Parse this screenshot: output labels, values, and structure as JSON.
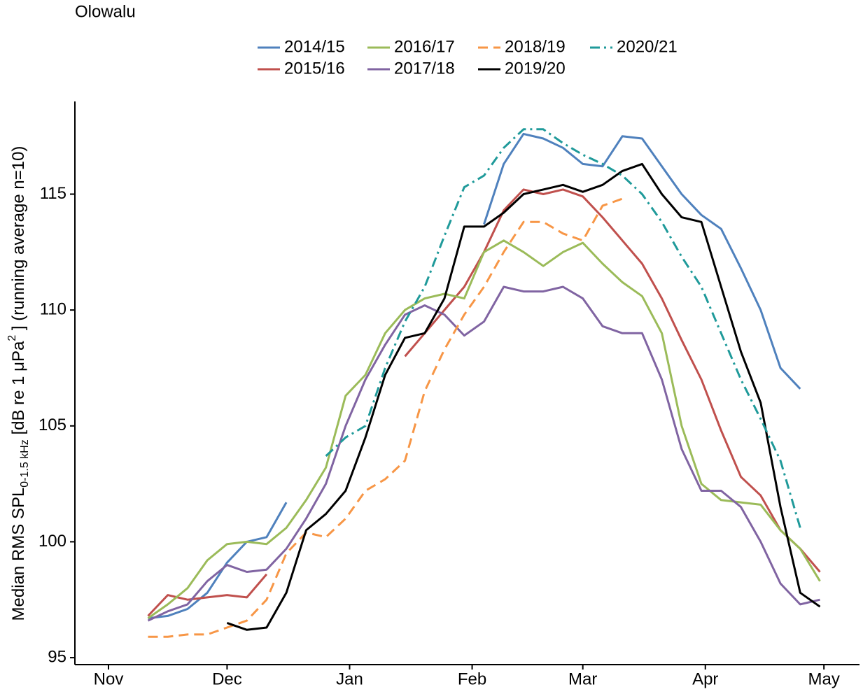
{
  "chart_data": {
    "type": "line",
    "title": "Olowalu",
    "ylabel": [
      "Median RMS SPL",
      "0-1.5 kHz",
      " [dB re 1 μPa",
      "2",
      " ] (running average n=10)"
    ],
    "x": [
      10,
      15,
      20,
      25,
      30,
      35,
      40,
      45,
      50,
      55,
      60,
      65,
      70,
      75,
      80,
      85,
      90,
      95,
      100,
      105,
      110,
      115,
      120,
      125,
      130,
      135,
      140,
      145,
      150,
      155,
      160,
      165,
      170,
      175,
      180
    ],
    "xlim": [
      -8.5,
      190
    ],
    "xticks": [
      {
        "value": 0,
        "label": "Nov"
      },
      {
        "value": 30,
        "label": "Dec"
      },
      {
        "value": 61,
        "label": "Jan"
      },
      {
        "value": 92,
        "label": "Feb"
      },
      {
        "value": 120,
        "label": "Mar"
      },
      {
        "value": 151,
        "label": "Apr"
      },
      {
        "value": 181,
        "label": "May"
      }
    ],
    "ylim": [
      94.7,
      119
    ],
    "yticks": [
      95,
      100,
      105,
      110,
      115
    ],
    "series": [
      {
        "name": "2014/15",
        "color": "#4f81bd",
        "dash": "solid",
        "values": [
          96.7,
          96.8,
          97.1,
          97.8,
          99.1,
          100.0,
          100.2,
          101.7,
          null,
          null,
          null,
          null,
          null,
          null,
          null,
          null,
          null,
          113.7,
          116.3,
          117.6,
          117.4,
          117.0,
          116.3,
          116.2,
          117.5,
          117.4,
          116.2,
          115.0,
          114.1,
          113.5,
          111.8,
          110.0,
          107.5,
          106.6,
          null
        ]
      },
      {
        "name": "2015/16",
        "color": "#c0504d",
        "dash": "solid",
        "values": [
          96.8,
          97.7,
          97.5,
          97.6,
          97.7,
          97.6,
          98.6,
          null,
          null,
          null,
          null,
          null,
          null,
          108.0,
          109.0,
          110.0,
          111.0,
          112.5,
          114.3,
          115.2,
          115.0,
          115.2,
          114.9,
          114.0,
          113.0,
          112.0,
          110.5,
          108.7,
          107.0,
          104.8,
          102.8,
          102.0,
          100.5,
          99.7,
          98.7
        ]
      },
      {
        "name": "2016/17",
        "color": "#9bbb59",
        "dash": "solid",
        "values": [
          96.7,
          97.3,
          98.0,
          99.2,
          99.9,
          100.0,
          99.9,
          100.6,
          101.8,
          103.2,
          106.3,
          107.2,
          109.0,
          110.0,
          110.5,
          110.7,
          110.5,
          112.5,
          113.0,
          112.5,
          111.9,
          112.5,
          112.9,
          112.0,
          111.2,
          110.6,
          109.0,
          105.0,
          102.5,
          101.8,
          101.7,
          101.6,
          100.5,
          99.7,
          98.3
        ]
      },
      {
        "name": "2017/18",
        "color": "#8064a2",
        "dash": "solid",
        "values": [
          96.6,
          97.0,
          97.3,
          98.3,
          99.0,
          98.7,
          98.8,
          99.7,
          101.0,
          102.5,
          105.0,
          107.0,
          108.5,
          109.8,
          110.2,
          109.8,
          108.9,
          109.5,
          111.0,
          110.8,
          110.8,
          111.0,
          110.5,
          109.3,
          109.0,
          109.0,
          107.0,
          104.0,
          102.2,
          102.2,
          101.5,
          100.0,
          98.2,
          97.3,
          97.5
        ]
      },
      {
        "name": "2018/19",
        "color": "#f79646",
        "dash": "dashed",
        "values": [
          95.9,
          95.9,
          96.0,
          96.0,
          96.3,
          96.6,
          97.5,
          99.5,
          100.4,
          100.2,
          101.0,
          102.2,
          102.7,
          103.5,
          106.5,
          108.3,
          109.8,
          111.0,
          112.5,
          113.8,
          113.8,
          113.3,
          113.0,
          114.5,
          114.8,
          null,
          null,
          null,
          null,
          null,
          null,
          null,
          null,
          null,
          null
        ]
      },
      {
        "name": "2019/20",
        "color": "#000000",
        "dash": "solid",
        "values": [
          null,
          null,
          null,
          null,
          96.5,
          96.2,
          96.3,
          97.8,
          100.5,
          101.2,
          102.2,
          104.5,
          107.2,
          108.8,
          109.0,
          110.5,
          113.6,
          113.6,
          114.2,
          115.0,
          115.2,
          115.4,
          115.1,
          115.4,
          116.0,
          116.3,
          115.0,
          114.0,
          113.8,
          111.0,
          108.2,
          106.0,
          101.5,
          97.8,
          97.2
        ]
      },
      {
        "name": "2020/21",
        "color": "#1f9a9a",
        "dash": "dashdot",
        "values": [
          null,
          null,
          null,
          null,
          null,
          null,
          null,
          null,
          null,
          103.7,
          104.5,
          105.0,
          107.5,
          109.5,
          111.0,
          113.2,
          115.3,
          115.8,
          117.0,
          117.8,
          117.8,
          117.2,
          116.7,
          116.3,
          115.8,
          115.0,
          113.8,
          112.3,
          111.0,
          109.0,
          107.0,
          105.3,
          103.5,
          100.6,
          null
        ]
      }
    ]
  }
}
